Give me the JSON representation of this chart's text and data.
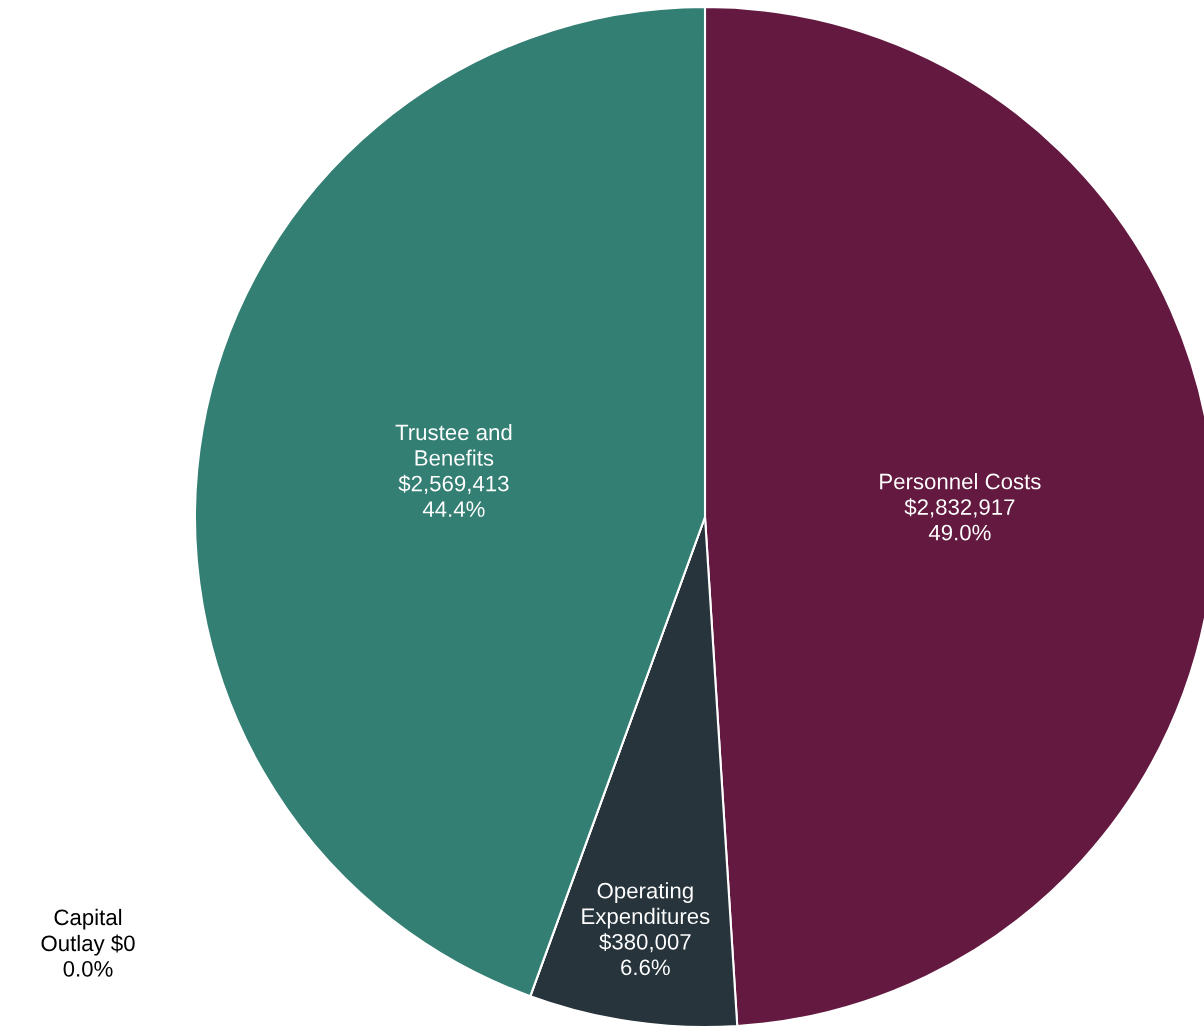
{
  "chart_data": {
    "type": "pie",
    "categories": [
      "Personnel Costs",
      "Operating\nExpenditures",
      "Capital\nOutlay",
      "Trustee and\nBenefits"
    ],
    "values": [
      2832917,
      380007,
      0,
      2569413
    ],
    "colors": [
      "#641a40",
      "#27343c",
      "#9e9e9e",
      "#347f73"
    ],
    "value_labels": [
      "$2,832,917\n49.0%",
      "$380,007\n6.6%",
      "$0\n0.0%",
      "$2,569,413\n44.4%"
    ]
  }
}
